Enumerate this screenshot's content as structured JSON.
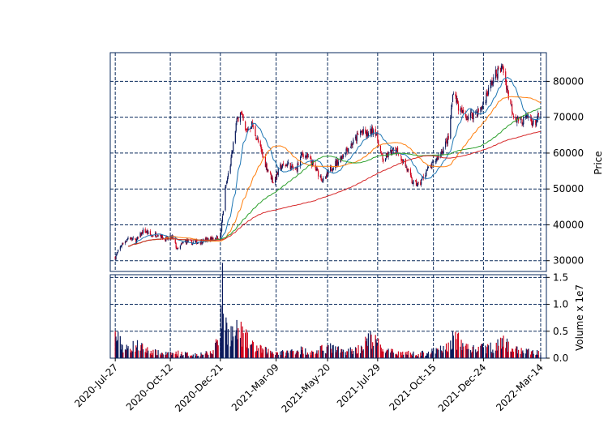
{
  "colors": {
    "frame": "#0a2a5c",
    "grid": "#0a2a5c",
    "up_candle": "#0a1a5c",
    "down_candle": "#d0021b",
    "ma_fast": "#1f77b4",
    "ma_mid": "#ff7f0e",
    "ma_slow": "#2ca02c",
    "ma_long": "#d62728"
  },
  "price_panel": {
    "ylabel": "Price",
    "yticks": [
      "30000",
      "40000",
      "50000",
      "60000",
      "70000",
      "80000"
    ],
    "ylim": [
      27000,
      88000
    ]
  },
  "volume_panel": {
    "ylabel": "Volume x 1e7",
    "yticks": [
      "0.0",
      "0.5",
      "1.0",
      "1.5"
    ],
    "ylim": [
      0,
      1.55
    ]
  },
  "x_axis": {
    "ticks": [
      "2020-Jul-27",
      "2020-Oct-12",
      "2020-Dec-21",
      "2021-Mar-09",
      "2021-May-20",
      "2021-Jul-29",
      "2021-Oct-15",
      "2021-Dec-24",
      "2022-Mar-14"
    ]
  },
  "chart_data": {
    "type": "candlestick",
    "grid": true,
    "series": [
      {
        "values": [
          [
            "2020-07-27",
            31000
          ],
          [
            "2020-08-05",
            34500
          ],
          [
            "2020-08-15",
            36500
          ],
          [
            "2020-08-25",
            35500
          ],
          [
            "2020-09-05",
            38500
          ],
          [
            "2020-09-15",
            37000
          ],
          [
            "2020-09-25",
            37500
          ],
          [
            "2020-10-05",
            36000
          ],
          [
            "2020-10-15",
            36500
          ],
          [
            "2020-10-22",
            33000
          ],
          [
            "2020-11-01",
            35500
          ],
          [
            "2020-11-12",
            35000
          ],
          [
            "2020-11-25",
            35500
          ],
          [
            "2020-12-05",
            36000
          ],
          [
            "2020-12-15",
            36500
          ],
          [
            "2020-12-21",
            36500
          ],
          [
            "2020-12-28",
            50000
          ],
          [
            "2021-01-05",
            58000
          ],
          [
            "2021-01-12",
            68000
          ],
          [
            "2021-01-18",
            72000
          ],
          [
            "2021-01-25",
            66000
          ],
          [
            "2021-02-03",
            68000
          ],
          [
            "2021-02-12",
            63000
          ],
          [
            "2021-02-22",
            57000
          ],
          [
            "2021-03-05",
            52000
          ],
          [
            "2021-03-15",
            56000
          ],
          [
            "2021-03-25",
            57000
          ],
          [
            "2021-04-05",
            55000
          ],
          [
            "2021-04-15",
            60000
          ],
          [
            "2021-04-25",
            58000
          ],
          [
            "2021-05-05",
            55000
          ],
          [
            "2021-05-15",
            52000
          ],
          [
            "2021-05-25",
            56000
          ],
          [
            "2021-06-05",
            58000
          ],
          [
            "2021-06-15",
            61000
          ],
          [
            "2021-06-25",
            63000
          ],
          [
            "2021-07-05",
            66000
          ],
          [
            "2021-07-15",
            65000
          ],
          [
            "2021-07-25",
            67000
          ],
          [
            "2021-08-05",
            58000
          ],
          [
            "2021-08-15",
            60000
          ],
          [
            "2021-08-25",
            61000
          ],
          [
            "2021-09-05",
            57000
          ],
          [
            "2021-09-15",
            52000
          ],
          [
            "2021-09-25",
            51000
          ],
          [
            "2021-10-05",
            55000
          ],
          [
            "2021-10-15",
            57000
          ],
          [
            "2021-10-25",
            60000
          ],
          [
            "2021-11-05",
            64000
          ],
          [
            "2021-11-12",
            78000
          ],
          [
            "2021-11-20",
            72000
          ],
          [
            "2021-12-01",
            70000
          ],
          [
            "2021-12-10",
            71000
          ],
          [
            "2021-12-20",
            72000
          ],
          [
            "2022-01-01",
            78000
          ],
          [
            "2022-01-10",
            82000
          ],
          [
            "2022-01-20",
            84000
          ],
          [
            "2022-01-28",
            76000
          ],
          [
            "2022-02-05",
            70000
          ],
          [
            "2022-02-15",
            69000
          ],
          [
            "2022-02-25",
            70000
          ],
          [
            "2022-03-05",
            68000
          ],
          [
            "2022-03-14",
            71000
          ]
        ]
      },
      {
        "values": [
          [
            "2020-07-27",
            0.5
          ],
          [
            "2020-08-10",
            0.2
          ],
          [
            "2020-08-25",
            0.3
          ],
          [
            "2020-09-10",
            0.18
          ],
          [
            "2020-09-25",
            0.12
          ],
          [
            "2020-10-10",
            0.1
          ],
          [
            "2020-10-25",
            0.12
          ],
          [
            "2020-11-10",
            0.08
          ],
          [
            "2020-11-25",
            0.1
          ],
          [
            "2020-12-10",
            0.12
          ],
          [
            "2020-12-21",
            0.7
          ],
          [
            "2020-12-24",
            1.45
          ],
          [
            "2020-12-30",
            0.65
          ],
          [
            "2021-01-08",
            0.55
          ],
          [
            "2021-01-18",
            0.6
          ],
          [
            "2021-02-01",
            0.3
          ],
          [
            "2021-02-15",
            0.2
          ],
          [
            "2021-03-01",
            0.15
          ],
          [
            "2021-03-20",
            0.12
          ],
          [
            "2021-04-10",
            0.2
          ],
          [
            "2021-04-30",
            0.12
          ],
          [
            "2021-05-20",
            0.25
          ],
          [
            "2021-06-10",
            0.15
          ],
          [
            "2021-07-01",
            0.2
          ],
          [
            "2021-07-20",
            0.45
          ],
          [
            "2021-08-10",
            0.15
          ],
          [
            "2021-09-01",
            0.12
          ],
          [
            "2021-09-25",
            0.1
          ],
          [
            "2021-10-15",
            0.15
          ],
          [
            "2021-11-05",
            0.25
          ],
          [
            "2021-11-12",
            0.48
          ],
          [
            "2021-11-25",
            0.3
          ],
          [
            "2021-12-10",
            0.2
          ],
          [
            "2022-01-05",
            0.25
          ],
          [
            "2022-01-20",
            0.35
          ],
          [
            "2022-02-05",
            0.2
          ],
          [
            "2022-02-25",
            0.15
          ],
          [
            "2022-03-14",
            0.12
          ]
        ]
      }
    ],
    "xlim": [
      "2020-07-20",
      "2022-03-22"
    ]
  }
}
